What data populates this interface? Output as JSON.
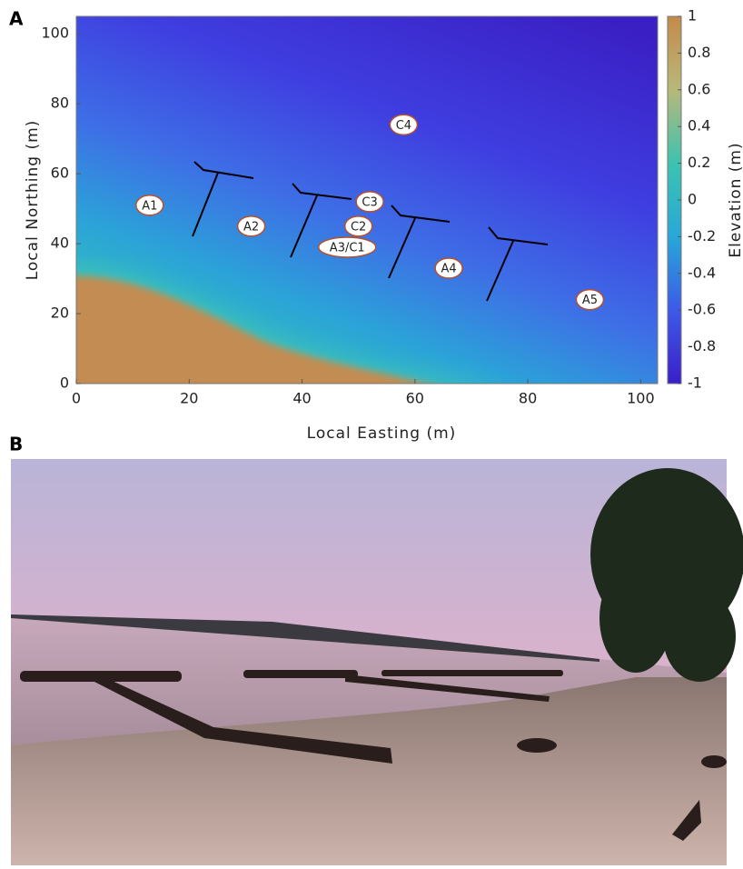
{
  "panel_a": "A",
  "panel_b": "B",
  "chart_data": {
    "type": "heatmap",
    "xlabel": "Local Easting (m)",
    "ylabel": "Local Northing (m)",
    "xlim": [
      0,
      103
    ],
    "ylim": [
      0,
      105
    ],
    "xticks": [
      0,
      20,
      40,
      60,
      80,
      100
    ],
    "yticks": [
      0,
      20,
      40,
      60,
      80,
      100
    ],
    "colorbar_label": "Elevation (m)",
    "clim": [
      -1,
      1
    ],
    "cticks": [
      -1,
      -0.8,
      -0.6,
      -0.4,
      -0.2,
      0,
      0.2,
      0.4,
      0.6,
      0.8,
      1
    ],
    "colormap": [
      "#3a1fc9",
      "#3d5ae8",
      "#27a8d8",
      "#3cc3b0",
      "#b8b87a",
      "#c48a4a"
    ],
    "points": [
      {
        "label": "A1",
        "x": 13,
        "y": 51
      },
      {
        "label": "A2",
        "x": 31,
        "y": 45
      },
      {
        "label": "C3",
        "x": 52,
        "y": 52
      },
      {
        "label": "C2",
        "x": 50,
        "y": 45
      },
      {
        "label": "A3/C1",
        "x": 48,
        "y": 39
      },
      {
        "label": "C4",
        "x": 58,
        "y": 74
      },
      {
        "label": "A4",
        "x": 66,
        "y": 33
      },
      {
        "label": "A5",
        "x": 91,
        "y": 24
      }
    ]
  }
}
